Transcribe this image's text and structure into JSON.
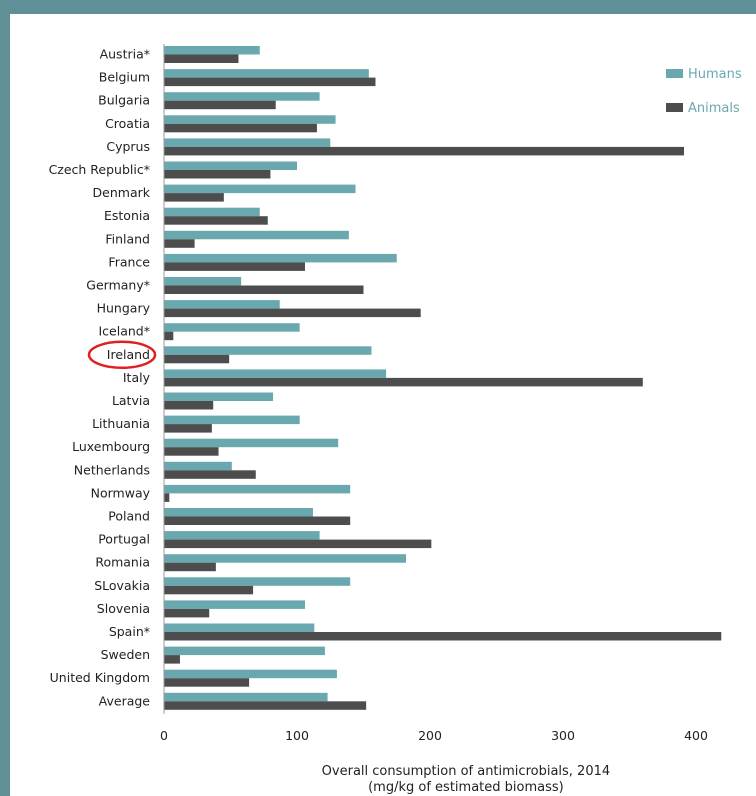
{
  "chart_data": {
    "type": "bar",
    "orientation": "horizontal",
    "categories": [
      "Austria*",
      "Belgium",
      "Bulgaria",
      "Croatia",
      "Cyprus",
      "Czech Republic*",
      "Denmark",
      "Estonia",
      "Finland",
      "France",
      "Germany*",
      "Hungary",
      "Iceland*",
      "Ireland",
      "Italy",
      "Latvia",
      "Lithuania",
      "Luxembourg",
      "Netherlands",
      "Normway",
      "Poland",
      "Portugal",
      "Romania",
      "SLovakia",
      "Slovenia",
      "Spain*",
      "Sweden",
      "United Kingdom",
      "Average"
    ],
    "series": [
      {
        "name": "Humans",
        "color": "#6aa8b0",
        "values": [
          72,
          154,
          117,
          129,
          125,
          100,
          144,
          72,
          139,
          175,
          58,
          87,
          102,
          156,
          167,
          82,
          102,
          131,
          51,
          140,
          112,
          117,
          182,
          140,
          106,
          113,
          121,
          130,
          123
        ]
      },
      {
        "name": "Animals",
        "color": "#4d4d4d",
        "values": [
          56,
          159,
          84,
          115,
          391,
          80,
          45,
          78,
          23,
          106,
          150,
          193,
          7,
          49,
          360,
          37,
          36,
          41,
          69,
          4,
          140,
          201,
          39,
          67,
          34,
          419,
          12,
          64,
          152
        ]
      }
    ],
    "xlabel": "Overall consumption of antimicrobials, 2014\n(mg/kg of estimated biomass)",
    "xticks": [
      0,
      100,
      200,
      300,
      400
    ],
    "xlim": [
      0,
      445
    ],
    "legend": "top-right",
    "grid": false,
    "highlight": {
      "category": "Ireland",
      "style": "red-ellipse",
      "color": "#e02020"
    }
  }
}
